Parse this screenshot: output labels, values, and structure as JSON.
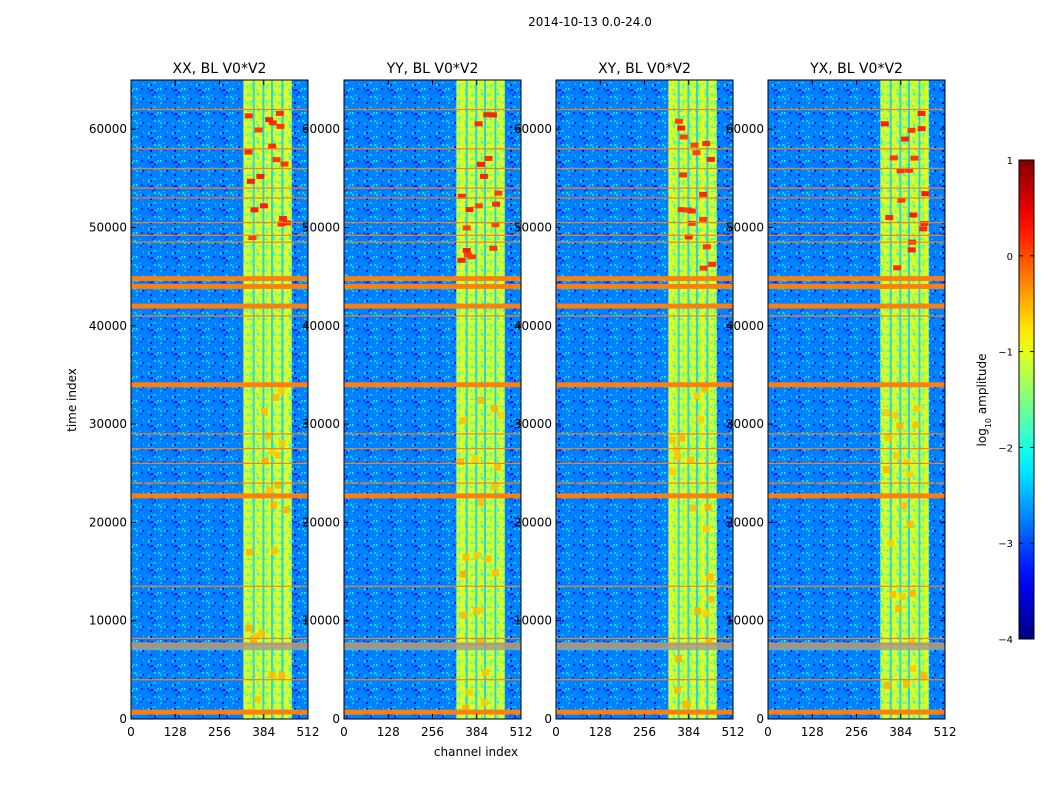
{
  "chart_data": {
    "type": "heatmap",
    "suptitle": "2014-10-13 0.0-24.0",
    "xlabel": "channel index",
    "ylabel": "time index",
    "xlim": [
      0,
      512
    ],
    "ylim": [
      0,
      65000
    ],
    "xticks": [
      0,
      128,
      256,
      384,
      512
    ],
    "yticks": [
      0,
      10000,
      20000,
      30000,
      40000,
      50000,
      60000
    ],
    "panels": [
      {
        "title": "XX, BL V0*V2",
        "pol": "XX"
      },
      {
        "title": "YY, BL V0*V2",
        "pol": "YY"
      },
      {
        "title": "XY, BL V0*V2",
        "pol": "XY"
      },
      {
        "title": "YX, BL V0*V2",
        "pol": "YX"
      }
    ],
    "colorbar": {
      "label": "log",
      "label_sub": "10",
      "label_rest": " amplitude",
      "range": [
        -4,
        1
      ],
      "ticks": [
        "1",
        "0",
        "−1",
        "−2",
        "−3",
        "−4"
      ],
      "tick_values": [
        1,
        0,
        -1,
        -2,
        -3,
        -4
      ],
      "colormap": "jet"
    },
    "rfi_band_channels": [
      325,
      465
    ],
    "flag_rows_thick": [
      700,
      22700,
      34000,
      42000,
      44000,
      44800
    ],
    "flag_rows_thin": [
      4000,
      7600,
      8200,
      13500,
      24000,
      26000,
      27500,
      29000,
      41000,
      48500,
      49200,
      50500,
      53000,
      54000,
      56000,
      58000,
      62000
    ],
    "flag_color": "#ff7f0e",
    "grey_band_rows": [
      7000,
      7800
    ]
  }
}
